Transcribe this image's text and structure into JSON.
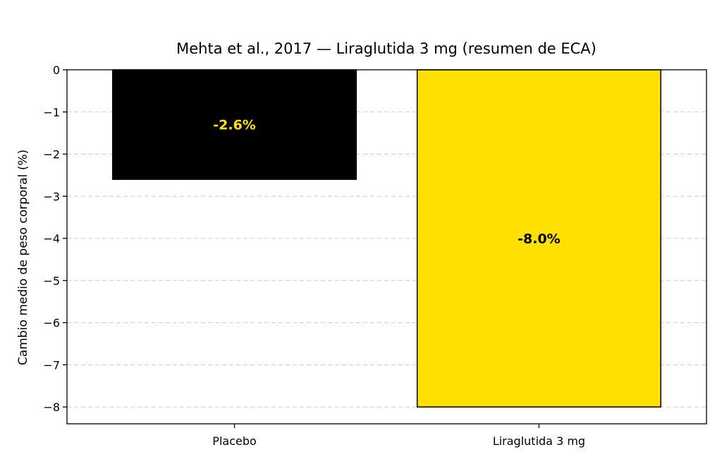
{
  "chart_data": {
    "type": "bar",
    "title": "Mehta et al., 2017 — Liraglutida 3 mg (resumen de ECA)",
    "xlabel": "",
    "ylabel": "Cambio medio de peso corporal (%)",
    "categories": [
      "Placebo",
      "Liraglutida 3 mg"
    ],
    "values": [
      -2.6,
      -8.0
    ],
    "data_labels": [
      "-2.6%",
      "-8.0%"
    ],
    "ylim": [
      -8.4,
      0
    ],
    "yticks": [
      0,
      -1,
      -2,
      -3,
      -4,
      -5,
      -6,
      -7,
      -8
    ],
    "ytick_labels": [
      "0",
      "−1",
      "−2",
      "−3",
      "−4",
      "−5",
      "−6",
      "−7",
      "−8"
    ],
    "grid": true,
    "bar_colors": [
      "#000000",
      "#ffe000"
    ],
    "label_colors": [
      "#ffe000",
      "#000000"
    ]
  }
}
